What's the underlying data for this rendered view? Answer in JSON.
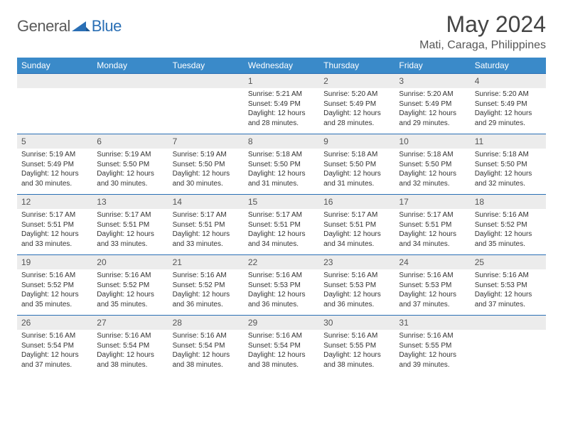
{
  "brand": {
    "part1": "General",
    "part2": "Blue"
  },
  "title": "May 2024",
  "location": "Mati, Caraga, Philippines",
  "colors": {
    "header_bg": "#3a8ac9",
    "header_text": "#ffffff",
    "daynum_bg": "#ececec",
    "rule": "#2a6fb5",
    "logo_gray": "#5a5a5a",
    "logo_blue": "#2a6fb5"
  },
  "weekdays": [
    "Sunday",
    "Monday",
    "Tuesday",
    "Wednesday",
    "Thursday",
    "Friday",
    "Saturday"
  ],
  "start_weekday_index": 3,
  "days": [
    {
      "n": 1,
      "sunrise": "5:21 AM",
      "sunset": "5:49 PM",
      "daylight": "12 hours and 28 minutes."
    },
    {
      "n": 2,
      "sunrise": "5:20 AM",
      "sunset": "5:49 PM",
      "daylight": "12 hours and 28 minutes."
    },
    {
      "n": 3,
      "sunrise": "5:20 AM",
      "sunset": "5:49 PM",
      "daylight": "12 hours and 29 minutes."
    },
    {
      "n": 4,
      "sunrise": "5:20 AM",
      "sunset": "5:49 PM",
      "daylight": "12 hours and 29 minutes."
    },
    {
      "n": 5,
      "sunrise": "5:19 AM",
      "sunset": "5:49 PM",
      "daylight": "12 hours and 30 minutes."
    },
    {
      "n": 6,
      "sunrise": "5:19 AM",
      "sunset": "5:50 PM",
      "daylight": "12 hours and 30 minutes."
    },
    {
      "n": 7,
      "sunrise": "5:19 AM",
      "sunset": "5:50 PM",
      "daylight": "12 hours and 30 minutes."
    },
    {
      "n": 8,
      "sunrise": "5:18 AM",
      "sunset": "5:50 PM",
      "daylight": "12 hours and 31 minutes."
    },
    {
      "n": 9,
      "sunrise": "5:18 AM",
      "sunset": "5:50 PM",
      "daylight": "12 hours and 31 minutes."
    },
    {
      "n": 10,
      "sunrise": "5:18 AM",
      "sunset": "5:50 PM",
      "daylight": "12 hours and 32 minutes."
    },
    {
      "n": 11,
      "sunrise": "5:18 AM",
      "sunset": "5:50 PM",
      "daylight": "12 hours and 32 minutes."
    },
    {
      "n": 12,
      "sunrise": "5:17 AM",
      "sunset": "5:51 PM",
      "daylight": "12 hours and 33 minutes."
    },
    {
      "n": 13,
      "sunrise": "5:17 AM",
      "sunset": "5:51 PM",
      "daylight": "12 hours and 33 minutes."
    },
    {
      "n": 14,
      "sunrise": "5:17 AM",
      "sunset": "5:51 PM",
      "daylight": "12 hours and 33 minutes."
    },
    {
      "n": 15,
      "sunrise": "5:17 AM",
      "sunset": "5:51 PM",
      "daylight": "12 hours and 34 minutes."
    },
    {
      "n": 16,
      "sunrise": "5:17 AM",
      "sunset": "5:51 PM",
      "daylight": "12 hours and 34 minutes."
    },
    {
      "n": 17,
      "sunrise": "5:17 AM",
      "sunset": "5:51 PM",
      "daylight": "12 hours and 34 minutes."
    },
    {
      "n": 18,
      "sunrise": "5:16 AM",
      "sunset": "5:52 PM",
      "daylight": "12 hours and 35 minutes."
    },
    {
      "n": 19,
      "sunrise": "5:16 AM",
      "sunset": "5:52 PM",
      "daylight": "12 hours and 35 minutes."
    },
    {
      "n": 20,
      "sunrise": "5:16 AM",
      "sunset": "5:52 PM",
      "daylight": "12 hours and 35 minutes."
    },
    {
      "n": 21,
      "sunrise": "5:16 AM",
      "sunset": "5:52 PM",
      "daylight": "12 hours and 36 minutes."
    },
    {
      "n": 22,
      "sunrise": "5:16 AM",
      "sunset": "5:53 PM",
      "daylight": "12 hours and 36 minutes."
    },
    {
      "n": 23,
      "sunrise": "5:16 AM",
      "sunset": "5:53 PM",
      "daylight": "12 hours and 36 minutes."
    },
    {
      "n": 24,
      "sunrise": "5:16 AM",
      "sunset": "5:53 PM",
      "daylight": "12 hours and 37 minutes."
    },
    {
      "n": 25,
      "sunrise": "5:16 AM",
      "sunset": "5:53 PM",
      "daylight": "12 hours and 37 minutes."
    },
    {
      "n": 26,
      "sunrise": "5:16 AM",
      "sunset": "5:54 PM",
      "daylight": "12 hours and 37 minutes."
    },
    {
      "n": 27,
      "sunrise": "5:16 AM",
      "sunset": "5:54 PM",
      "daylight": "12 hours and 38 minutes."
    },
    {
      "n": 28,
      "sunrise": "5:16 AM",
      "sunset": "5:54 PM",
      "daylight": "12 hours and 38 minutes."
    },
    {
      "n": 29,
      "sunrise": "5:16 AM",
      "sunset": "5:54 PM",
      "daylight": "12 hours and 38 minutes."
    },
    {
      "n": 30,
      "sunrise": "5:16 AM",
      "sunset": "5:55 PM",
      "daylight": "12 hours and 38 minutes."
    },
    {
      "n": 31,
      "sunrise": "5:16 AM",
      "sunset": "5:55 PM",
      "daylight": "12 hours and 39 minutes."
    }
  ],
  "labels": {
    "sunrise": "Sunrise:",
    "sunset": "Sunset:",
    "daylight": "Daylight:"
  }
}
